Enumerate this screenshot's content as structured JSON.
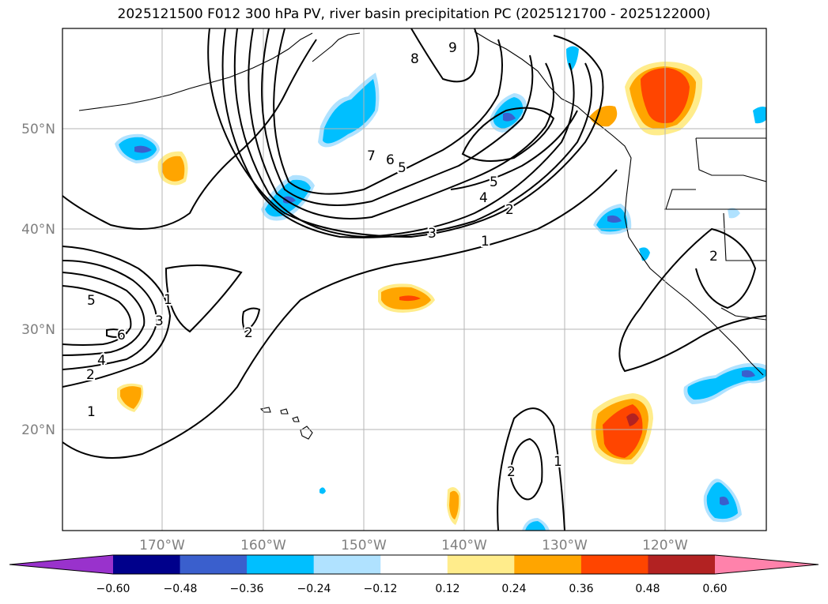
{
  "title": "2025121500 F012 300 hPa PV, river basin precipitation PC (2025121700 - 2025122000)",
  "axes": {
    "lat_labels": [
      "50°N",
      "40°N",
      "30°N",
      "20°N"
    ],
    "lon_labels": [
      "170°W",
      "160°W",
      "150°W",
      "140°W",
      "130°W",
      "120°W"
    ]
  },
  "colorbar": {
    "colors": [
      "#9932cc",
      "#00008b",
      "#3a5fcd",
      "#00bfff",
      "#b0e2ff",
      "#ffffff",
      "#ffec8b",
      "#ffa500",
      "#ff4500",
      "#b22222",
      "#ff82ab"
    ],
    "tick_labels": [
      "−0.60",
      "−0.48",
      "−0.36",
      "−0.24",
      "−0.12",
      "0.12",
      "0.24",
      "0.36",
      "0.48",
      "0.60"
    ]
  },
  "pv_contour_labels": [
    "9",
    "8",
    "7",
    "6",
    "5",
    "5",
    "4",
    "3",
    "2",
    "1",
    "5",
    "6",
    "4",
    "3",
    "2",
    "1",
    "1",
    "2",
    "2",
    "1",
    "2"
  ]
}
